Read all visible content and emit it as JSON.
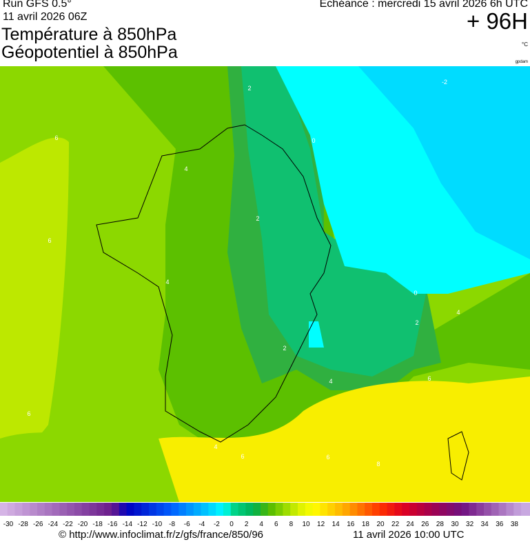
{
  "header": {
    "run": "Run GFS 0.5°",
    "run_date": "11 avril 2026 06Z",
    "title_temperature": "Température à 850hPa",
    "title_geopotential": "Géopotentiel à 850hPa",
    "echeance": "Echéance : mercredi 15 avril 2026 6h UTC",
    "lead_time": "+ 96H",
    "unit": "°C",
    "credit": "gpdam"
  },
  "map": {
    "contour_labels": [
      2,
      0,
      -2,
      4,
      2,
      6,
      6,
      4,
      0,
      2,
      4,
      2,
      4,
      6,
      6,
      4,
      6,
      6,
      8
    ]
  },
  "legend": {
    "ticks": [
      -30,
      -28,
      -26,
      -24,
      -22,
      -20,
      -18,
      -16,
      -14,
      -12,
      -10,
      -8,
      -6,
      -4,
      -2,
      0,
      2,
      4,
      6,
      8,
      10,
      12,
      14,
      16,
      18,
      20,
      22,
      24,
      26,
      28,
      30,
      32,
      34,
      36,
      38
    ]
  },
  "footer": {
    "url": "© http://www.infoclimat.fr/z/gfs/france/850/96",
    "updated": "11 avril 2026 10:00 UTC"
  }
}
